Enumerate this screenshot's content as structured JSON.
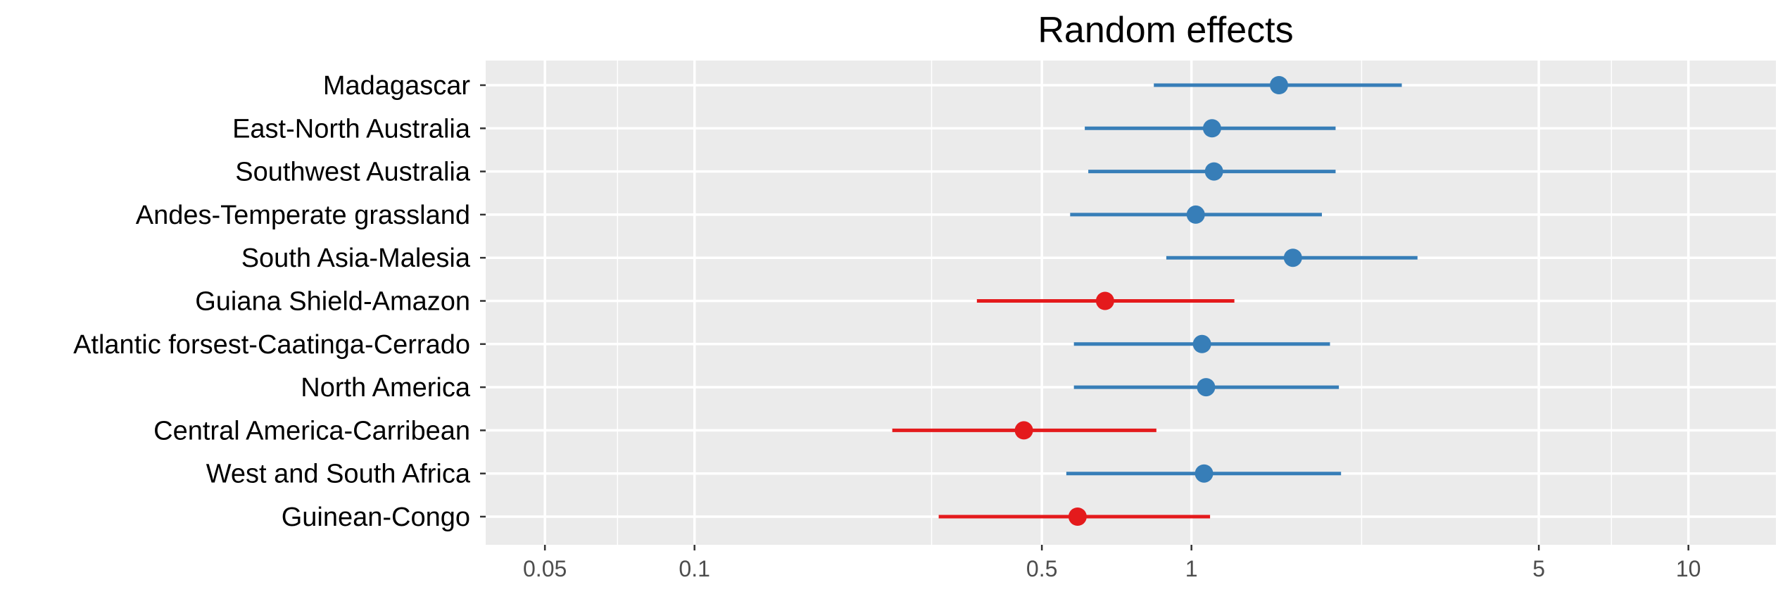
{
  "chart_data": {
    "type": "scatter",
    "title": "Random effects",
    "xlabel": "",
    "ylabel": "",
    "x_scale": "log",
    "xlim": [
      0.038,
      15
    ],
    "x_ticks": [
      0.05,
      0.1,
      0.5,
      1,
      5,
      10
    ],
    "x_tick_labels": [
      "0.05",
      "0.1",
      "0.5",
      "1",
      "5",
      "10"
    ],
    "x_minor_ticks": [
      0.07,
      0.3,
      2.2,
      7
    ],
    "grid": true,
    "legend": "none",
    "colors": {
      "positive": "#377EB8",
      "negative": "#E41A1C",
      "panel": "#EBEBEB",
      "grid": "#FFFFFF"
    },
    "categories": [
      "Madagascar",
      "East-North Australia",
      "Southwest Australia",
      "Andes-Temperate grassland",
      "South Asia-Malesia",
      "Guiana Shield-Amazon",
      "Atlantic forsest-Caatinga-Cerrado",
      "North America",
      "Central America-Carribean",
      "West and South Africa",
      "Guinean-Congo"
    ],
    "points": [
      {
        "label": "Madagascar",
        "estimate": 1.5,
        "lower": 0.84,
        "upper": 2.65,
        "group": "positive"
      },
      {
        "label": "East-North Australia",
        "estimate": 1.1,
        "lower": 0.61,
        "upper": 1.95,
        "group": "positive"
      },
      {
        "label": "Southwest Australia",
        "estimate": 1.11,
        "lower": 0.62,
        "upper": 1.95,
        "group": "positive"
      },
      {
        "label": "Andes-Temperate grassland",
        "estimate": 1.02,
        "lower": 0.57,
        "upper": 1.83,
        "group": "positive"
      },
      {
        "label": "South Asia-Malesia",
        "estimate": 1.6,
        "lower": 0.89,
        "upper": 2.85,
        "group": "positive"
      },
      {
        "label": "Guiana Shield-Amazon",
        "estimate": 0.67,
        "lower": 0.37,
        "upper": 1.22,
        "group": "negative"
      },
      {
        "label": "Atlantic forsest-Caatinga-Cerrado",
        "estimate": 1.05,
        "lower": 0.58,
        "upper": 1.9,
        "group": "positive"
      },
      {
        "label": "North America",
        "estimate": 1.07,
        "lower": 0.58,
        "upper": 1.98,
        "group": "positive"
      },
      {
        "label": "Central America-Carribean",
        "estimate": 0.46,
        "lower": 0.25,
        "upper": 0.85,
        "group": "negative"
      },
      {
        "label": "West and South Africa",
        "estimate": 1.06,
        "lower": 0.56,
        "upper": 2.0,
        "group": "positive"
      },
      {
        "label": "Guinean-Congo",
        "estimate": 0.59,
        "lower": 0.31,
        "upper": 1.09,
        "group": "negative"
      }
    ]
  }
}
